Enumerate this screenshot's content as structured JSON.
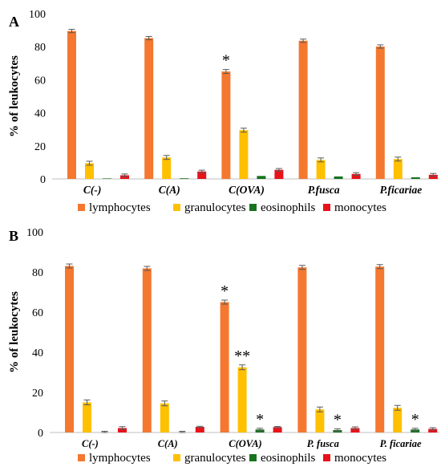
{
  "chart_data": [
    {
      "panel_label": "A",
      "type": "bar",
      "ylabel": "% of leukocytes",
      "ylim": [
        0,
        100
      ],
      "yticks": [
        0,
        20,
        40,
        60,
        80,
        100
      ],
      "categories": [
        "C(-)",
        "C(A)",
        "C(OVA)",
        "P.fusca",
        "P.ficariae"
      ],
      "series": [
        {
          "name": "lymphocytes",
          "color": "#F4782F",
          "values": [
            89.5,
            85.2,
            65.0,
            83.6,
            80.1
          ],
          "errors": [
            1.0,
            1.0,
            1.2,
            1.0,
            1.0
          ],
          "annotations": [
            "",
            "",
            "*",
            "",
            ""
          ]
        },
        {
          "name": "granulocytes",
          "color": "#FFC000",
          "values": [
            9.5,
            13.0,
            29.5,
            11.5,
            12.0
          ],
          "errors": [
            1.2,
            1.2,
            1.2,
            1.2,
            1.2
          ],
          "annotations": [
            "",
            "",
            "",
            "",
            ""
          ]
        },
        {
          "name": "eosinophils",
          "color": "#17731E",
          "values": [
            0.3,
            0.4,
            1.8,
            1.5,
            1.0
          ],
          "errors": [
            0,
            0,
            0,
            0,
            0
          ],
          "annotations": [
            "",
            "",
            "",
            "",
            ""
          ]
        },
        {
          "name": "monocytes",
          "color": "#E8121A",
          "values": [
            2.2,
            4.5,
            5.5,
            3.0,
            2.5
          ],
          "errors": [
            0.8,
            0.8,
            0.8,
            0.8,
            0.8
          ],
          "annotations": [
            "",
            "",
            "",
            "",
            ""
          ]
        }
      ],
      "legend_position": "bottom",
      "grid": false
    },
    {
      "panel_label": "B",
      "type": "bar",
      "ylabel": "% of leukocytes",
      "ylim": [
        0,
        100
      ],
      "yticks": [
        0,
        20,
        40,
        60,
        80,
        100
      ],
      "categories": [
        "C(-)",
        "C(A)",
        "C(OVA)",
        "P. fusca",
        "P. ficariae"
      ],
      "series": [
        {
          "name": "lymphocytes",
          "color": "#F4782F",
          "values": [
            83.0,
            81.8,
            65.0,
            82.3,
            82.7
          ],
          "errors": [
            1.0,
            1.0,
            1.0,
            1.0,
            1.0
          ],
          "annotations": [
            "",
            "",
            "*",
            "",
            ""
          ]
        },
        {
          "name": "granulocytes",
          "color": "#FFC000",
          "values": [
            15.0,
            14.5,
            32.5,
            11.5,
            12.3
          ],
          "errors": [
            1.2,
            1.2,
            1.2,
            1.2,
            1.2
          ],
          "annotations": [
            "",
            "",
            "**",
            "",
            ""
          ]
        },
        {
          "name": "eosinophils",
          "color": "#17731E",
          "values": [
            0.0,
            0.0,
            1.5,
            1.2,
            1.5
          ],
          "errors": [
            0.6,
            0.6,
            0.6,
            0.6,
            0.6
          ],
          "annotations": [
            "",
            "",
            "*",
            "*",
            "*"
          ]
        },
        {
          "name": "monocytes",
          "color": "#E8121A",
          "values": [
            2.2,
            2.8,
            2.7,
            2.2,
            1.8
          ],
          "errors": [
            0.7,
            0.3,
            0.3,
            0.6,
            0.6
          ],
          "annotations": [
            "",
            "",
            "",
            "",
            ""
          ]
        }
      ],
      "legend_position": "bottom",
      "grid": false
    }
  ]
}
